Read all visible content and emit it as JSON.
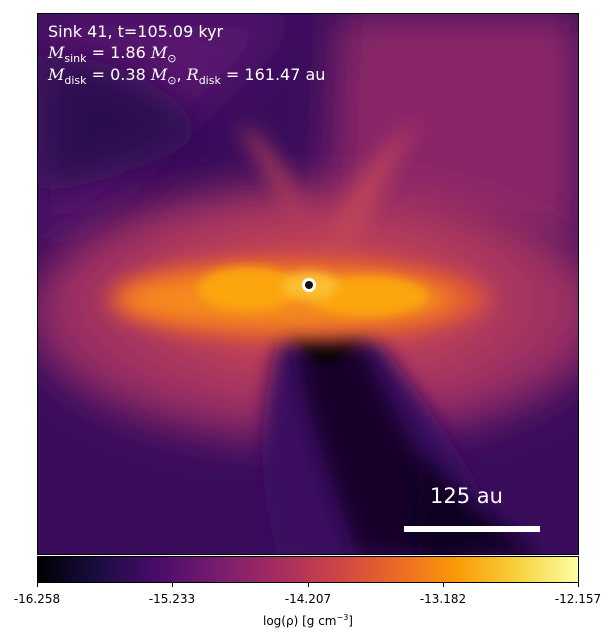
{
  "annotation": {
    "line1": "Sink 41, t=105.09 kyr",
    "mass_sink_symbol": "M",
    "mass_sink_sub": "sink",
    "mass_sink_value": "= 1.86",
    "mass_sink_unit": "M",
    "mass_sink_unit_sub": "⊙",
    "mass_disk_symbol": "M",
    "mass_disk_sub": "disk",
    "mass_disk_value": "= 0.38",
    "mass_disk_unit": "M",
    "mass_disk_unit_sub": "⊙",
    "separator": ",",
    "radius_symbol": "R",
    "radius_sub": "disk",
    "radius_value": "= 161.47 au"
  },
  "scalebar": {
    "label": "125 au"
  },
  "colorbar": {
    "ticks": [
      "-16.258",
      "-15.233",
      "-14.207",
      "-13.182",
      "-12.157"
    ],
    "label_prefix": "log(ρ) [g cm",
    "label_exp": "−3",
    "label_suffix": "]",
    "colormap": "inferno",
    "stops": [
      "#000004",
      "#1b0c41",
      "#4a0c6b",
      "#781c6d",
      "#a52c60",
      "#cf4446",
      "#ed6925",
      "#fb9b06",
      "#f7d13d",
      "#fcffa4"
    ]
  },
  "colors": {
    "background_dark": "#220a4a",
    "disk_bright": "#fca50a",
    "envelope": "#c2415a"
  }
}
